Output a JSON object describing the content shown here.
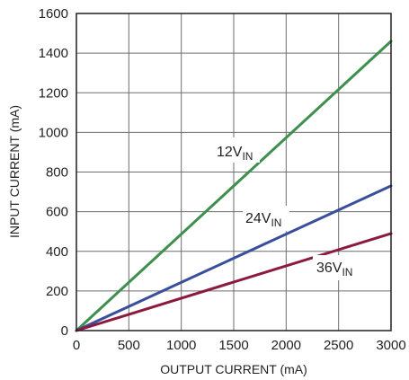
{
  "chart_data": {
    "type": "line",
    "title": "",
    "xlabel": "OUTPUT CURRENT (mA)",
    "ylabel": "INPUT CURRENT (mA)",
    "xlim": [
      0,
      3000
    ],
    "ylim": [
      0,
      1600
    ],
    "xticks": [
      "0",
      "500",
      "1000",
      "1500",
      "2000",
      "2500",
      "3000"
    ],
    "yticks": [
      "0",
      "200",
      "400",
      "600",
      "800",
      "1000",
      "1200",
      "1400",
      "1600"
    ],
    "grid": true,
    "legend": "inline labels",
    "series": [
      {
        "label_main": "12V",
        "label_sub": "IN",
        "color": "#3f8f4e",
        "x": [
          0,
          3000
        ],
        "y": [
          0,
          1460
        ]
      },
      {
        "label_main": "24V",
        "label_sub": "IN",
        "color": "#3a4f9c",
        "x": [
          0,
          3000
        ],
        "y": [
          0,
          730
        ]
      },
      {
        "label_main": "36V",
        "label_sub": "IN",
        "color": "#8c1a3c",
        "x": [
          0,
          3000
        ],
        "y": [
          0,
          490
        ]
      }
    ]
  }
}
